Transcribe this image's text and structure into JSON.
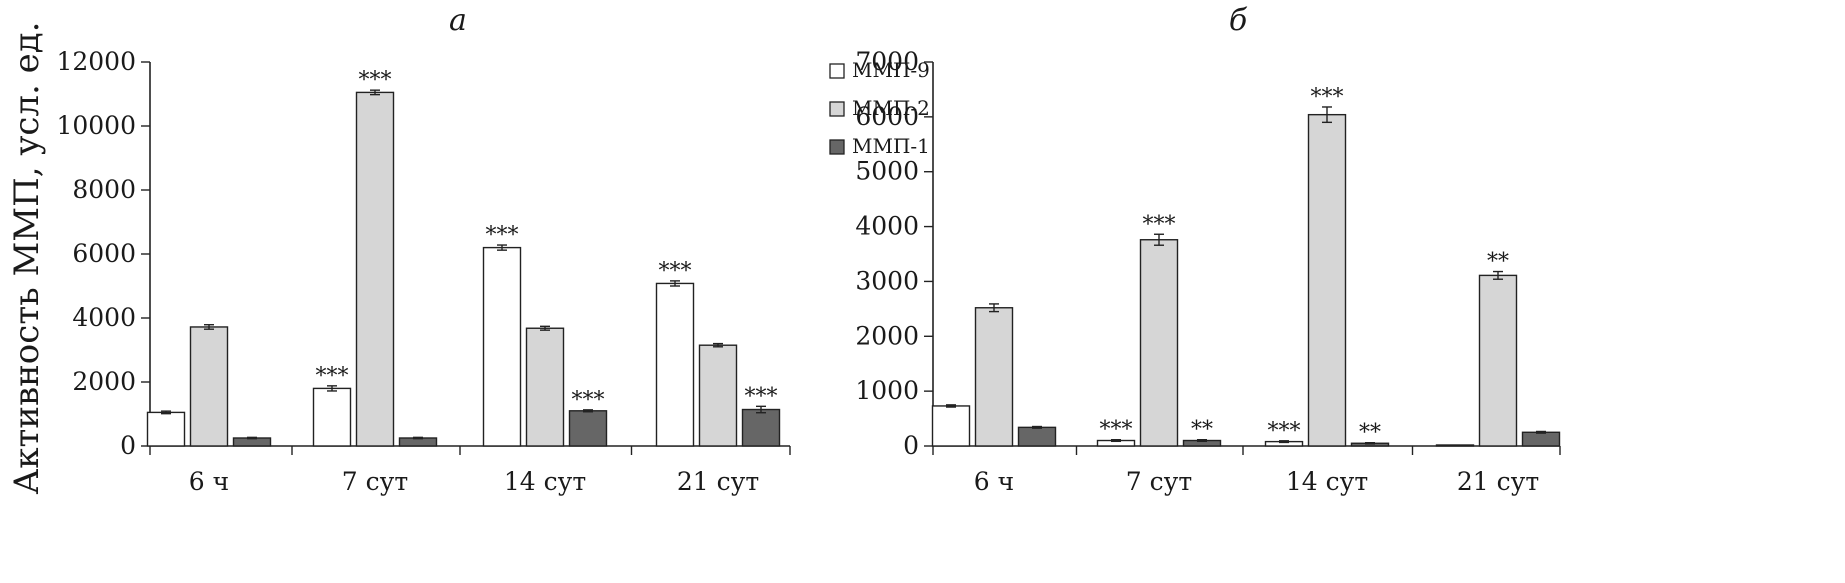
{
  "legend": [
    {
      "name": "ММП-9",
      "color": "#ffffff"
    },
    {
      "name": "ММП-2",
      "color": "#d6d6d6"
    },
    {
      "name": "ММП-1",
      "color": "#666666"
    }
  ],
  "chart_data": [
    {
      "type": "bar",
      "panel_label": "а",
      "ylabel": "Активность ММП, усл. ед.",
      "ylim": [
        0,
        12000
      ],
      "yticks": [
        0,
        2000,
        4000,
        6000,
        8000,
        10000,
        12000
      ],
      "categories": [
        "6 ч",
        "7 сут",
        "14 сут",
        "21 сут"
      ],
      "series": [
        {
          "name": "ММП-9",
          "values": [
            1050,
            1800,
            6200,
            5080
          ],
          "errors": [
            40,
            80,
            80,
            80
          ],
          "significance": [
            "",
            "***",
            "***",
            "***"
          ]
        },
        {
          "name": "ММП-2",
          "values": [
            3720,
            11050,
            3680,
            3150
          ],
          "errors": [
            70,
            70,
            60,
            50
          ],
          "significance": [
            "",
            "***",
            "",
            ""
          ]
        },
        {
          "name": "ММП-1",
          "values": [
            250,
            250,
            1100,
            1140
          ],
          "errors": [
            20,
            20,
            30,
            100
          ],
          "significance": [
            "",
            "",
            "***",
            "***"
          ]
        }
      ]
    },
    {
      "type": "bar",
      "panel_label": "б",
      "ylabel": "",
      "ylim": [
        0,
        7000
      ],
      "yticks": [
        0,
        1000,
        2000,
        3000,
        4000,
        5000,
        6000,
        7000
      ],
      "categories": [
        "6 ч",
        "7 сут",
        "14 сут",
        "21 сут"
      ],
      "series": [
        {
          "name": "ММП-9",
          "values": [
            730,
            100,
            80,
            10
          ],
          "errors": [
            20,
            15,
            15,
            5
          ],
          "significance": [
            "",
            "***",
            "***",
            ""
          ]
        },
        {
          "name": "ММП-2",
          "values": [
            2520,
            3760,
            6040,
            3110
          ],
          "errors": [
            70,
            100,
            140,
            70
          ],
          "significance": [
            "",
            "***",
            "***",
            "**"
          ]
        },
        {
          "name": "ММП-1",
          "values": [
            340,
            100,
            50,
            250
          ],
          "errors": [
            15,
            15,
            10,
            15
          ],
          "significance": [
            "",
            "**",
            "**",
            ""
          ]
        }
      ]
    }
  ]
}
